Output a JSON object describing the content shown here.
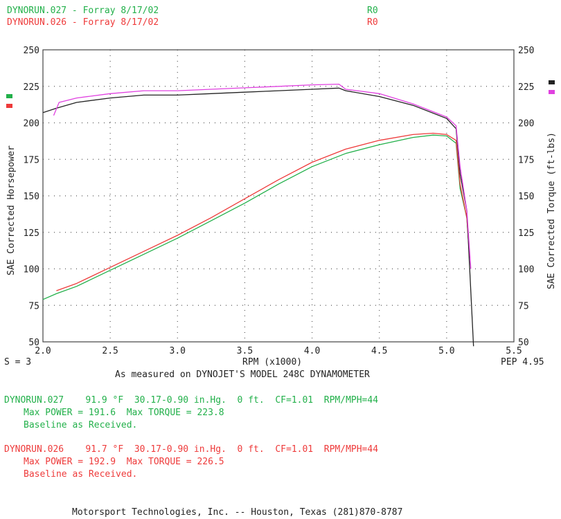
{
  "header": {
    "run1": {
      "name": "DYNORUN.027 - Forray 8/17/02",
      "code": "R0"
    },
    "run2": {
      "name": "DYNORUN.026 - Forray 8/17/02",
      "code": "R0"
    }
  },
  "axes": {
    "left_label": "SAE Corrected Horsepower",
    "right_label": "SAE Corrected Torque (ft-lbs)",
    "x_label": "RPM (x1000)",
    "smoothing": "S = 3",
    "pep": "PEP 4.95",
    "measured": "As measured on DYNOJET'S MODEL 248C DYNAMOMETER"
  },
  "results": {
    "run1": {
      "line1": "DYNORUN.027    91.9 °F  30.17-0.90 in.Hg.  0 ft.  CF=1.01  RPM/MPH=44",
      "line2": "Max POWER = 191.6  Max TORQUE = 223.8",
      "line3": "Baseline as Received."
    },
    "run2": {
      "line1": "DYNORUN.026    91.7 °F  30.17-0.90 in.Hg.  0 ft.  CF=1.01  RPM/MPH=44",
      "line2": "Max POWER = 192.9  Max TORQUE = 226.5",
      "line3": "Baseline as Received."
    }
  },
  "footer": "Motorsport Technologies, Inc. -- Houston, Texas (281)870-8787",
  "colors": {
    "run1_hp": "#22b04a",
    "run2_hp": "#ee3a3a",
    "run1_tq": "#222222",
    "run2_tq": "#e040e0",
    "grid": "#555555"
  },
  "chart_data": {
    "type": "line",
    "xlabel": "RPM (x1000)",
    "ylabel": "SAE Corrected Horsepower",
    "ylabel_right": "SAE Corrected Torque (ft-lbs)",
    "xlim": [
      2.0,
      5.5
    ],
    "ylim": [
      50,
      250
    ],
    "x_ticks": [
      "2.0",
      "2.5",
      "3.0",
      "3.5",
      "4.0",
      "4.5",
      "5.0",
      "5.5"
    ],
    "y_ticks": [
      "50",
      "75",
      "100",
      "125",
      "150",
      "175",
      "200",
      "225",
      "250"
    ],
    "grid": "dotted",
    "series": [
      {
        "name": "DYNORUN.027",
        "metric": "power",
        "points": [
          [
            2.0,
            79
          ],
          [
            2.1,
            83
          ],
          [
            2.25,
            88
          ],
          [
            2.5,
            99
          ],
          [
            2.75,
            110
          ],
          [
            3.0,
            121
          ],
          [
            3.25,
            133
          ],
          [
            3.5,
            145
          ],
          [
            3.75,
            158
          ],
          [
            4.0,
            170
          ],
          [
            4.25,
            179
          ],
          [
            4.5,
            185
          ],
          [
            4.75,
            190
          ],
          [
            4.9,
            191.6
          ],
          [
            5.0,
            191
          ],
          [
            5.07,
            186
          ],
          [
            5.1,
            155
          ],
          [
            5.15,
            135
          ],
          [
            5.17,
            110
          ]
        ]
      },
      {
        "name": "DYNORUN.026",
        "metric": "power",
        "points": [
          [
            2.1,
            85
          ],
          [
            2.25,
            90
          ],
          [
            2.5,
            101
          ],
          [
            2.75,
            112
          ],
          [
            3.0,
            123
          ],
          [
            3.25,
            135
          ],
          [
            3.5,
            148
          ],
          [
            3.75,
            161
          ],
          [
            4.0,
            173
          ],
          [
            4.25,
            182
          ],
          [
            4.5,
            188
          ],
          [
            4.75,
            192
          ],
          [
            4.9,
            192.9
          ],
          [
            5.0,
            192
          ],
          [
            5.07,
            188
          ],
          [
            5.1,
            158
          ],
          [
            5.15,
            135
          ],
          [
            5.17,
            108
          ]
        ]
      },
      {
        "name": "DYNORUN.027",
        "metric": "torque",
        "points": [
          [
            2.0,
            207
          ],
          [
            2.1,
            210
          ],
          [
            2.25,
            214
          ],
          [
            2.5,
            217
          ],
          [
            2.75,
            219
          ],
          [
            3.0,
            219
          ],
          [
            3.25,
            220
          ],
          [
            3.5,
            221
          ],
          [
            3.75,
            222
          ],
          [
            4.0,
            223
          ],
          [
            4.2,
            223.8
          ],
          [
            4.25,
            222
          ],
          [
            4.5,
            218
          ],
          [
            4.75,
            212
          ],
          [
            5.0,
            203
          ],
          [
            5.07,
            196
          ],
          [
            5.1,
            165
          ],
          [
            5.15,
            140
          ],
          [
            5.2,
            47
          ]
        ]
      },
      {
        "name": "DYNORUN.026",
        "metric": "torque",
        "points": [
          [
            2.08,
            205
          ],
          [
            2.12,
            214
          ],
          [
            2.25,
            217
          ],
          [
            2.5,
            220
          ],
          [
            2.75,
            222
          ],
          [
            3.0,
            222
          ],
          [
            3.25,
            223
          ],
          [
            3.5,
            224
          ],
          [
            3.75,
            225
          ],
          [
            4.0,
            226
          ],
          [
            4.2,
            226.5
          ],
          [
            4.25,
            223
          ],
          [
            4.5,
            220
          ],
          [
            4.75,
            213
          ],
          [
            5.0,
            204
          ],
          [
            5.07,
            198
          ],
          [
            5.1,
            170
          ],
          [
            5.15,
            140
          ],
          [
            5.18,
            100
          ]
        ]
      }
    ]
  }
}
